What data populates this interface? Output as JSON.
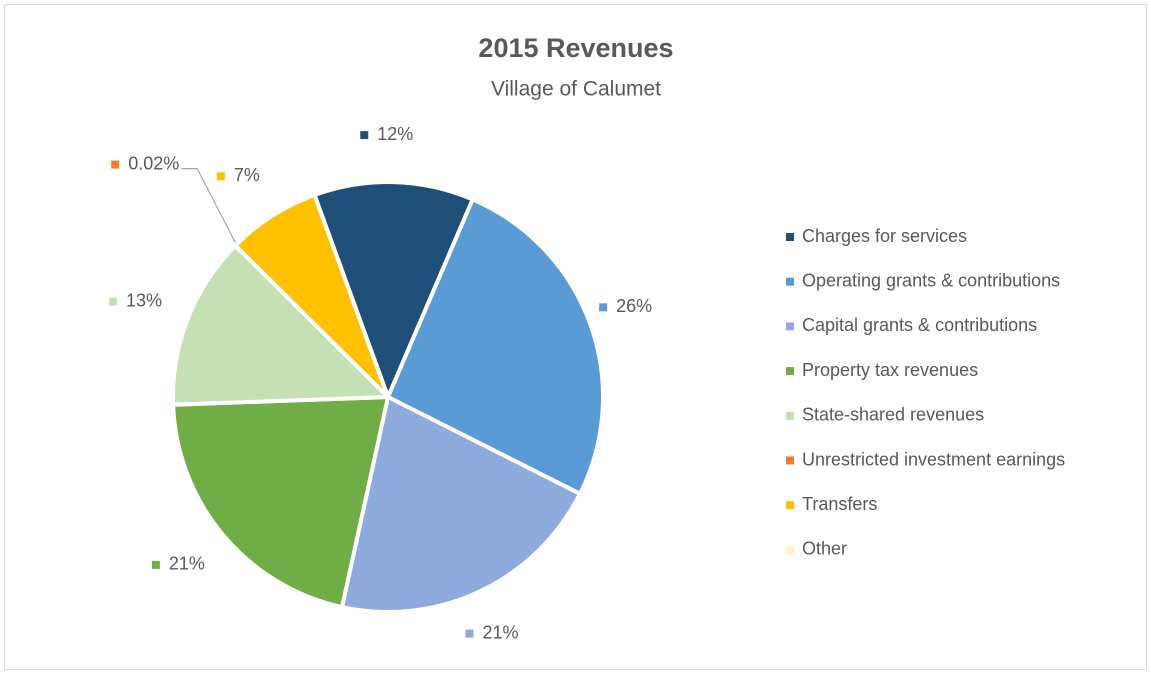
{
  "chart_data": {
    "type": "pie",
    "title": "2015 Revenues",
    "subtitle": "Village of Calumet",
    "categories": [
      "Charges for services",
      "Operating grants & contributions",
      "Capital grants & contributions",
      "Property tax revenues",
      "State-shared revenues",
      "Unrestricted investment earnings",
      "Transfers",
      "Other"
    ],
    "values": [
      12,
      26,
      21,
      21,
      13,
      0.02,
      7,
      0
    ],
    "value_labels": [
      "12%",
      "26%",
      "21%",
      "21%",
      "13%",
      "0.02%",
      "7%",
      null
    ],
    "colors": [
      "#1f4e79",
      "#5b9bd5",
      "#8faadc",
      "#70ad47",
      "#c5e0b4",
      "#ed7d31",
      "#ffc000",
      "#fff2cc"
    ],
    "legend": "right"
  }
}
